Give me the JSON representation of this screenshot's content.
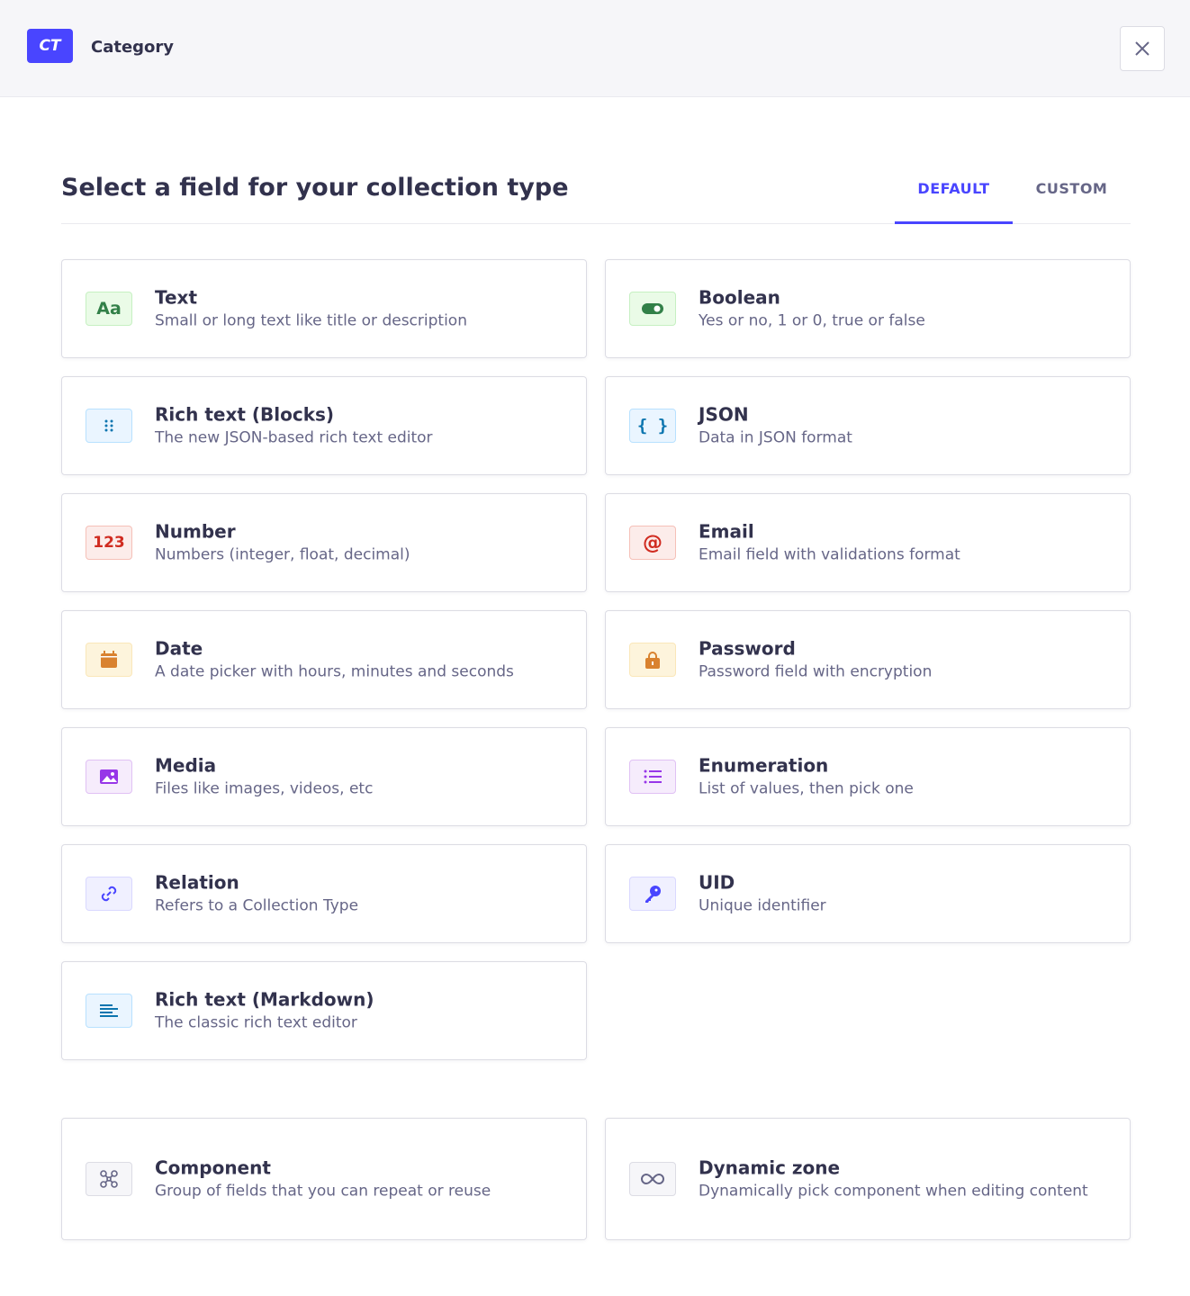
{
  "header": {
    "badge": "CT",
    "title": "Category",
    "close_icon": "close-icon"
  },
  "main": {
    "heading": "Select a field for your collection type",
    "tabs": [
      {
        "label": "DEFAULT",
        "active": true
      },
      {
        "label": "CUSTOM",
        "active": false
      }
    ],
    "fields": [
      {
        "title": "Text",
        "description": "Small or long text like title or description",
        "icon": "text-icon",
        "color": "#328048",
        "bg": "#eafbe7",
        "border": "#c6f0c2"
      },
      {
        "title": "Boolean",
        "description": "Yes or no, 1 or 0, true or false",
        "icon": "toggle-icon",
        "color": "#328048",
        "bg": "#eafbe7",
        "border": "#c6f0c2"
      },
      {
        "title": "Rich text (Blocks)",
        "description": "The new JSON-based rich text editor",
        "icon": "drag-dots-icon",
        "color": "#0c75af",
        "bg": "#eaf5ff",
        "border": "#b8e1ff"
      },
      {
        "title": "JSON",
        "description": "Data in JSON format",
        "icon": "braces-icon",
        "color": "#0c75af",
        "bg": "#eaf5ff",
        "border": "#b8e1ff"
      },
      {
        "title": "Number",
        "description": "Numbers (integer, float, decimal)",
        "icon": "number-icon",
        "color": "#d02b20",
        "bg": "#fcecea",
        "border": "#f5c0b8"
      },
      {
        "title": "Email",
        "description": "Email field with validations format",
        "icon": "at-icon",
        "color": "#d02b20",
        "bg": "#fcecea",
        "border": "#f5c0b8"
      },
      {
        "title": "Date",
        "description": "A date picker with hours, minutes and seconds",
        "icon": "calendar-icon",
        "color": "#d9822f",
        "bg": "#fdf4dc",
        "border": "#fae7b9"
      },
      {
        "title": "Password",
        "description": "Password field with encryption",
        "icon": "lock-icon",
        "color": "#d9822f",
        "bg": "#fdf4dc",
        "border": "#fae7b9"
      },
      {
        "title": "Media",
        "description": "Files like images, videos, etc",
        "icon": "image-icon",
        "color": "#9736e8",
        "bg": "#f6ecfc",
        "border": "#e0c1f4"
      },
      {
        "title": "Enumeration",
        "description": "List of values, then pick one",
        "icon": "list-icon",
        "color": "#9736e8",
        "bg": "#f6ecfc",
        "border": "#e0c1f4"
      },
      {
        "title": "Relation",
        "description": "Refers to a Collection Type",
        "icon": "link-icon",
        "color": "#4945ff",
        "bg": "#f0f0ff",
        "border": "#d9d8ff"
      },
      {
        "title": "UID",
        "description": "Unique identifier",
        "icon": "key-icon",
        "color": "#4945ff",
        "bg": "#f0f0ff",
        "border": "#d9d8ff"
      },
      {
        "title": "Rich text (Markdown)",
        "description": "The classic rich text editor",
        "icon": "paragraph-icon",
        "color": "#0c75af",
        "bg": "#eaf5ff",
        "border": "#b8e1ff"
      }
    ],
    "special_fields": [
      {
        "title": "Component",
        "description": "Group of fields that you can repeat or reuse",
        "icon": "component-icon",
        "color": "#666687",
        "bg": "#f6f6f9",
        "border": "#dcdce4"
      },
      {
        "title": "Dynamic zone",
        "description": "Dynamically pick component when editing content",
        "icon": "infinity-icon",
        "color": "#666687",
        "bg": "#f6f6f9",
        "border": "#dcdce4"
      }
    ]
  }
}
